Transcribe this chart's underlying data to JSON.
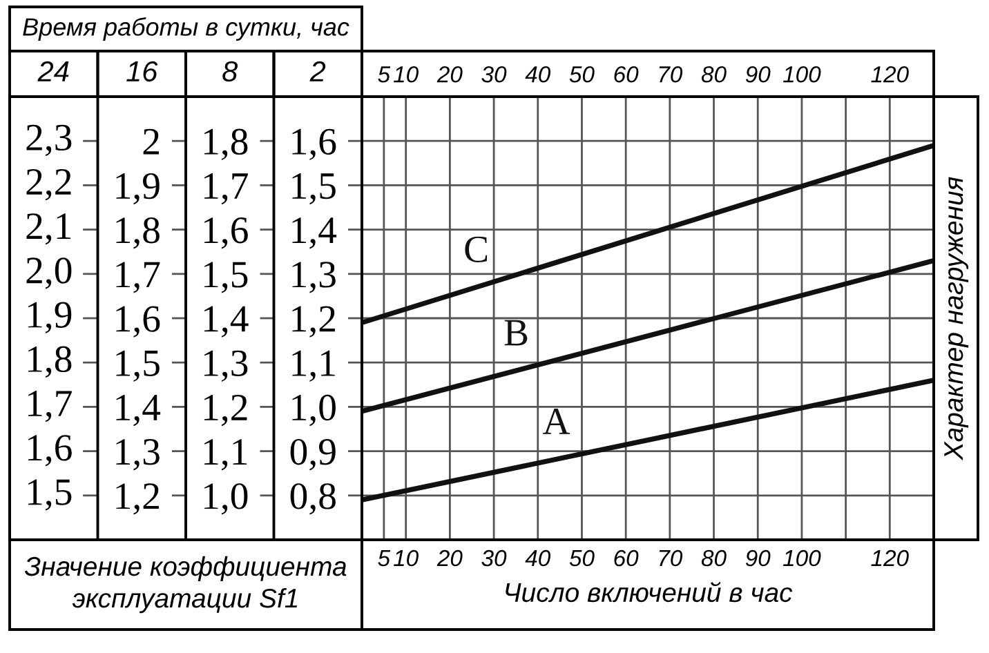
{
  "chart_data": {
    "type": "line",
    "title": "Время работы в сутки, час",
    "xlabel": "Число включений в час",
    "ylabel": "2",
    "y2label": "8",
    "y3label": "16",
    "annotations": [
      "Значение коэффициента эксплуатации Sf1",
      "Характер нагружения",
      "24",
      "2,3",
      "2,2",
      "2,1",
      "2,0",
      "1,9",
      "1,8",
      "1,7",
      "1,6",
      "1,5"
    ],
    "x": [
      0,
      130
    ],
    "xlim": [
      0,
      130
    ],
    "xticks": [
      5,
      10,
      20,
      30,
      40,
      50,
      60,
      70,
      80,
      90,
      100,
      {
        "value": 110,
        "label": null
      },
      120
    ],
    "x2lim": [
      0,
      130
    ],
    "x2ticks": [
      5,
      10,
      20,
      30,
      40,
      50,
      60,
      70,
      80,
      90,
      100,
      120
    ],
    "ylim": [
      0.7,
      1.7
    ],
    "yticks": [
      {
        "value": 0.8,
        "label": "0,8"
      },
      {
        "value": 0.9,
        "label": "0,9"
      },
      {
        "value": 1.0,
        "label": "1,0"
      },
      {
        "value": 1.1,
        "label": "1,1"
      },
      {
        "value": 1.2,
        "label": "1,2"
      },
      {
        "value": 1.3,
        "label": "1,3"
      },
      {
        "value": 1.4,
        "label": "1,4"
      },
      {
        "value": 1.5,
        "label": "1,5"
      },
      {
        "value": 1.6,
        "label": "1,6"
      }
    ],
    "y2lim": [
      0.9,
      1.9
    ],
    "y2ticks": [
      {
        "value": 1.0,
        "label": "1,0"
      },
      {
        "value": 1.1,
        "label": "1,1"
      },
      {
        "value": 1.2,
        "label": "1,2"
      },
      {
        "value": 1.3,
        "label": "1,3"
      },
      {
        "value": 1.4,
        "label": "1,4"
      },
      {
        "value": 1.5,
        "label": "1,5"
      },
      {
        "value": 1.6,
        "label": "1,6"
      },
      {
        "value": 1.7,
        "label": "1,7"
      },
      {
        "value": 1.8,
        "label": "1,8"
      }
    ],
    "y3lim": [
      1.1,
      2.1
    ],
    "y3ticks": [
      {
        "value": 1.2,
        "label": "1,2"
      },
      {
        "value": 1.3,
        "label": "1,3"
      },
      {
        "value": 1.4,
        "label": "1,4"
      },
      {
        "value": 1.5,
        "label": "1,5"
      },
      {
        "value": 1.6,
        "label": "1,6"
      },
      {
        "value": 1.7,
        "label": "1,7"
      },
      {
        "value": 1.8,
        "label": "1,8"
      },
      {
        "value": 1.9,
        "label": "1,9"
      },
      2
    ],
    "grid": true,
    "legend": false,
    "series": [
      {
        "name": "A",
        "color": "#111111",
        "values": [
          0.79,
          1.06
        ]
      },
      {
        "name": "B",
        "color": "#111111",
        "values": [
          0.99,
          1.33
        ]
      },
      {
        "name": "C",
        "color": "#111111",
        "values": [
          1.19,
          1.59
        ]
      }
    ]
  }
}
